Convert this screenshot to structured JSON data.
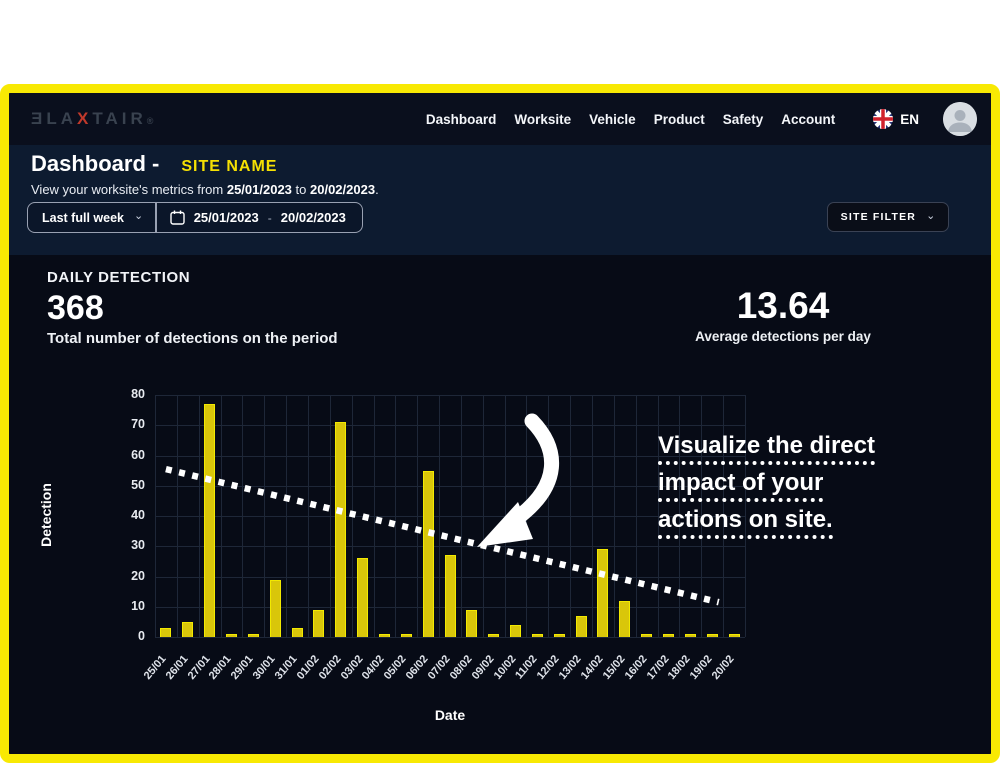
{
  "nav": {
    "logo": {
      "pre": "ƎLA",
      "x": "X",
      "post": "TAIR",
      "reg": "®"
    },
    "items": [
      {
        "label": "Dashboard"
      },
      {
        "label": "Worksite"
      },
      {
        "label": "Vehicle"
      },
      {
        "label": "Product"
      },
      {
        "label": "Safety"
      },
      {
        "label": "Account"
      }
    ],
    "language": "EN"
  },
  "header": {
    "title": "Dashboard -",
    "site_name": "SITE NAME",
    "subtitle_prefix": "View your worksite's metrics from ",
    "date_from": "25/01/2023",
    "subtitle_mid": " to ",
    "date_to": "20/02/2023",
    "subtitle_suffix": ".",
    "filters": {
      "range_preset": "Last full week",
      "date_start": "25/01/2023",
      "date_separator": "-",
      "date_end": "20/02/2023",
      "site_filter_label": "SITE FILTER"
    }
  },
  "stats": {
    "section_title": "DAILY DETECTION",
    "total": "368",
    "total_caption": "Total number of detections on the period",
    "average": "13.64",
    "average_caption": "Average detections per day"
  },
  "annotation": {
    "lines": [
      "Visualize the direct",
      "impact of your",
      "actions on site."
    ]
  },
  "chart_data": {
    "type": "bar",
    "title": "DAILY DETECTION",
    "xlabel": "Date",
    "ylabel": "Detection",
    "ylim": [
      0,
      80
    ],
    "ytick_step": 10,
    "grid": true,
    "legend": "none",
    "bar_color": "#d9c60a",
    "bar_border_color": "#f2e900",
    "categories": [
      "25/01",
      "26/01",
      "27/01",
      "28/01",
      "29/01",
      "30/01",
      "31/01",
      "01/02",
      "02/02",
      "03/02",
      "04/02",
      "05/02",
      "06/02",
      "07/02",
      "08/02",
      "09/02",
      "10/02",
      "11/02",
      "12/02",
      "13/02",
      "14/02",
      "15/02",
      "16/02",
      "17/02",
      "18/02",
      "19/02",
      "20/02"
    ],
    "values": [
      3,
      5,
      77,
      1,
      1,
      19,
      3,
      9,
      71,
      26,
      1,
      1,
      55,
      27,
      9,
      1,
      4,
      1,
      1,
      7,
      29,
      12,
      1,
      1,
      1,
      1,
      1
    ],
    "trendline": {
      "style": "dotted",
      "color": "#ffffff",
      "start_index": 0,
      "start_value": 55.5,
      "end_index": 25.3,
      "end_value": 11.5
    }
  },
  "colors": {
    "frame_yellow": "#f8e903",
    "nav_bg": "#0a0f1d",
    "header_bg": "#0d1b30",
    "main_bg": "#070b16",
    "accent_yellow": "#f5e003",
    "grid": "#1e2738"
  }
}
